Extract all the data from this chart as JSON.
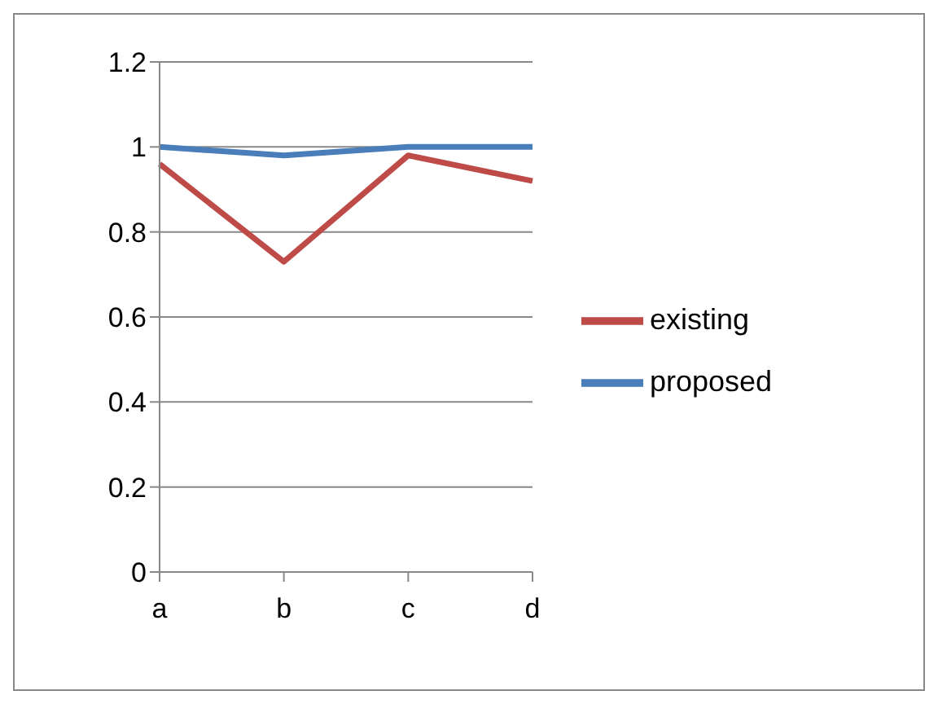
{
  "chart_data": {
    "type": "line",
    "categories": [
      "a",
      "b",
      "c",
      "d"
    ],
    "series": [
      {
        "name": "proposed",
        "color": "#4a7ebb",
        "values": [
          1.0,
          0.98,
          1.0,
          1.0
        ]
      },
      {
        "name": "existing",
        "color": "#be4b48",
        "values": [
          0.96,
          0.73,
          0.98,
          0.92
        ]
      }
    ],
    "ylim": [
      0,
      1.2
    ],
    "yticks": [
      0,
      0.2,
      0.4,
      0.6,
      0.8,
      1,
      1.2
    ],
    "grid": "y",
    "legend": "right",
    "marker": "none",
    "line_style": "solid"
  }
}
